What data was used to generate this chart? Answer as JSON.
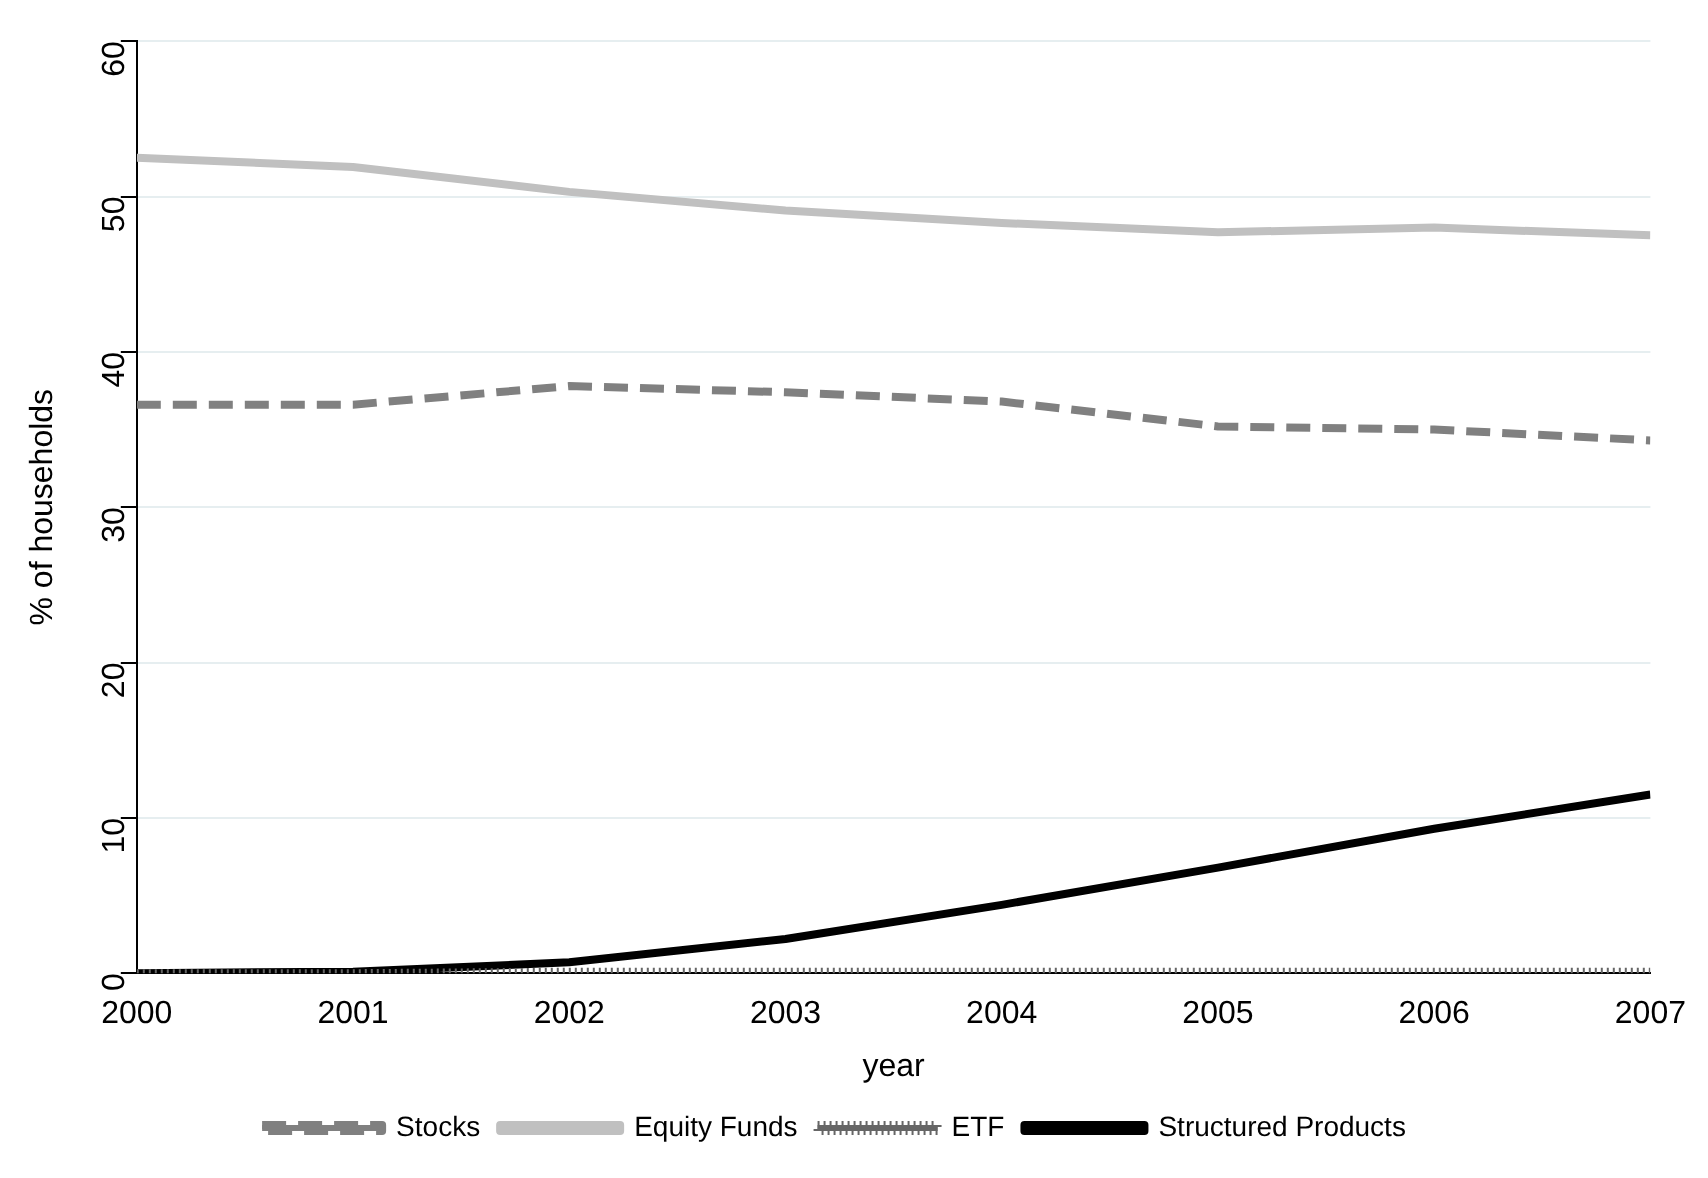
{
  "chart_data": {
    "type": "line",
    "xlabel": "year",
    "ylabel": "% of households",
    "x": [
      2000,
      2001,
      2002,
      2003,
      2004,
      2005,
      2006,
      2007
    ],
    "xlim": [
      2000,
      2007
    ],
    "xticks": [
      2000,
      2001,
      2002,
      2003,
      2004,
      2005,
      2006,
      2007
    ],
    "ylim": [
      0,
      60
    ],
    "yticks": [
      0,
      10,
      20,
      30,
      40,
      50,
      60
    ],
    "grid": "y",
    "legend": "bottom",
    "series": [
      {
        "name": "Stocks",
        "color": "#808080",
        "line_style": "dashed",
        "values": [
          36.6,
          36.6,
          37.8,
          37.4,
          36.8,
          35.2,
          35.0,
          34.3
        ]
      },
      {
        "name": "Equity Funds",
        "color": "#c0c0c0",
        "line_style": "solid",
        "values": [
          52.5,
          51.9,
          50.3,
          49.1,
          48.3,
          47.7,
          48.0,
          47.5
        ]
      },
      {
        "name": "ETF",
        "color": "#666666",
        "line_style": "dotted",
        "values": [
          0,
          0,
          0.1,
          0.1,
          0.1,
          0.1,
          0.1,
          0.1
        ]
      },
      {
        "name": "Structured Products",
        "color": "#000000",
        "line_style": "solid",
        "values": [
          0,
          0.1,
          0.7,
          2.2,
          4.4,
          6.8,
          9.3,
          11.5
        ]
      }
    ]
  }
}
